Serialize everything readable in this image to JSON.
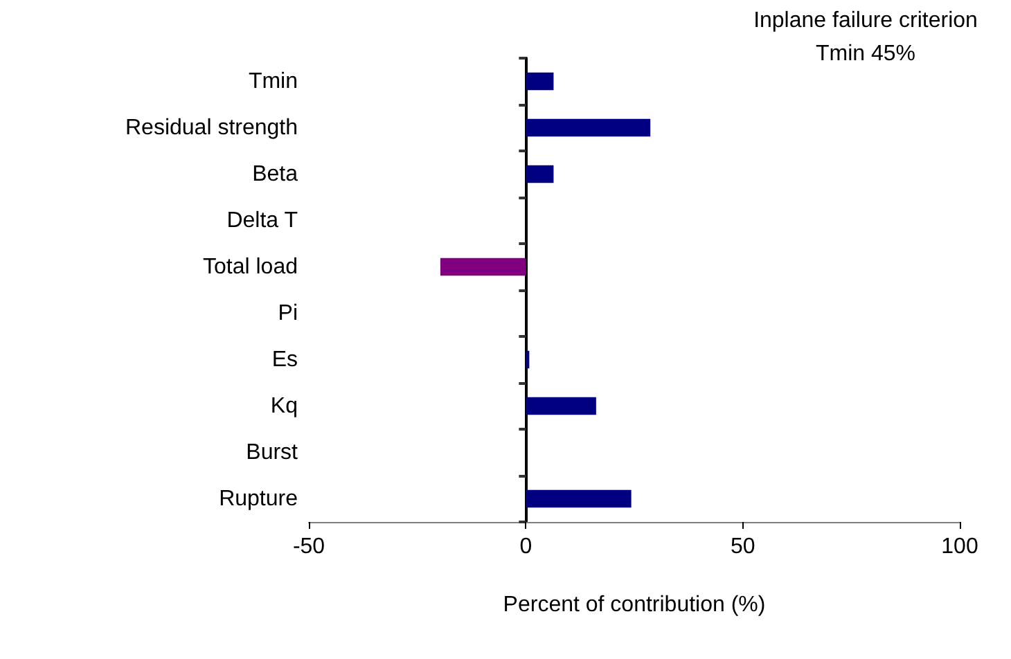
{
  "chart_data": {
    "type": "bar",
    "orientation": "horizontal",
    "title": "Inplane failure criterion",
    "subtitle": "Tmin 45%",
    "xlabel": "Percent of contribution (%)",
    "categories": [
      "Tmin",
      "Residual strength",
      "Beta",
      "Delta T",
      "Total load",
      "Pi",
      "Es",
      "Kq",
      "Burst",
      "Rupture"
    ],
    "values": [
      6.4,
      28.7,
      6.4,
      0,
      -19.7,
      0,
      0.8,
      16.2,
      0,
      24.3
    ],
    "colors": [
      "#000080",
      "#000080",
      "#000080",
      "#000080",
      "#800080",
      "#000080",
      "#000080",
      "#000080",
      "#000080",
      "#000080"
    ],
    "xlim": [
      -50,
      100
    ],
    "xticks": [
      -50,
      0,
      50,
      100
    ]
  }
}
